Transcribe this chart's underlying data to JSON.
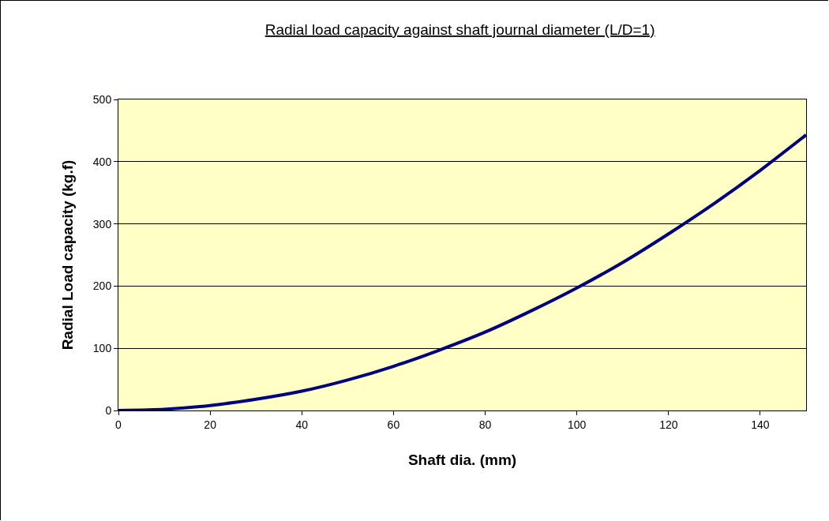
{
  "chart_data": {
    "type": "line",
    "title": "Radial load capacity against shaft journal diameter (L/D=1)",
    "xlabel": "Shaft dia. (mm)",
    "ylabel": "Radial Load capacity (kg.f)",
    "x": [
      0,
      10,
      20,
      30,
      40,
      50,
      60,
      70,
      80,
      90,
      100,
      110,
      120,
      130,
      140,
      150
    ],
    "series": [
      {
        "color": "#000080",
        "values": [
          0,
          2,
          8,
          18,
          31,
          49,
          71,
          97,
          126,
          160,
          197,
          238,
          284,
          333,
          386,
          443
        ]
      }
    ],
    "xlim": [
      0,
      150
    ],
    "xticks": [
      0,
      20,
      40,
      60,
      80,
      100,
      120,
      140
    ],
    "ylim": [
      0,
      500
    ],
    "yticks": [
      0,
      100,
      200,
      300,
      400,
      500
    ],
    "grid": "y",
    "marker": "none",
    "line_style": "solid"
  }
}
